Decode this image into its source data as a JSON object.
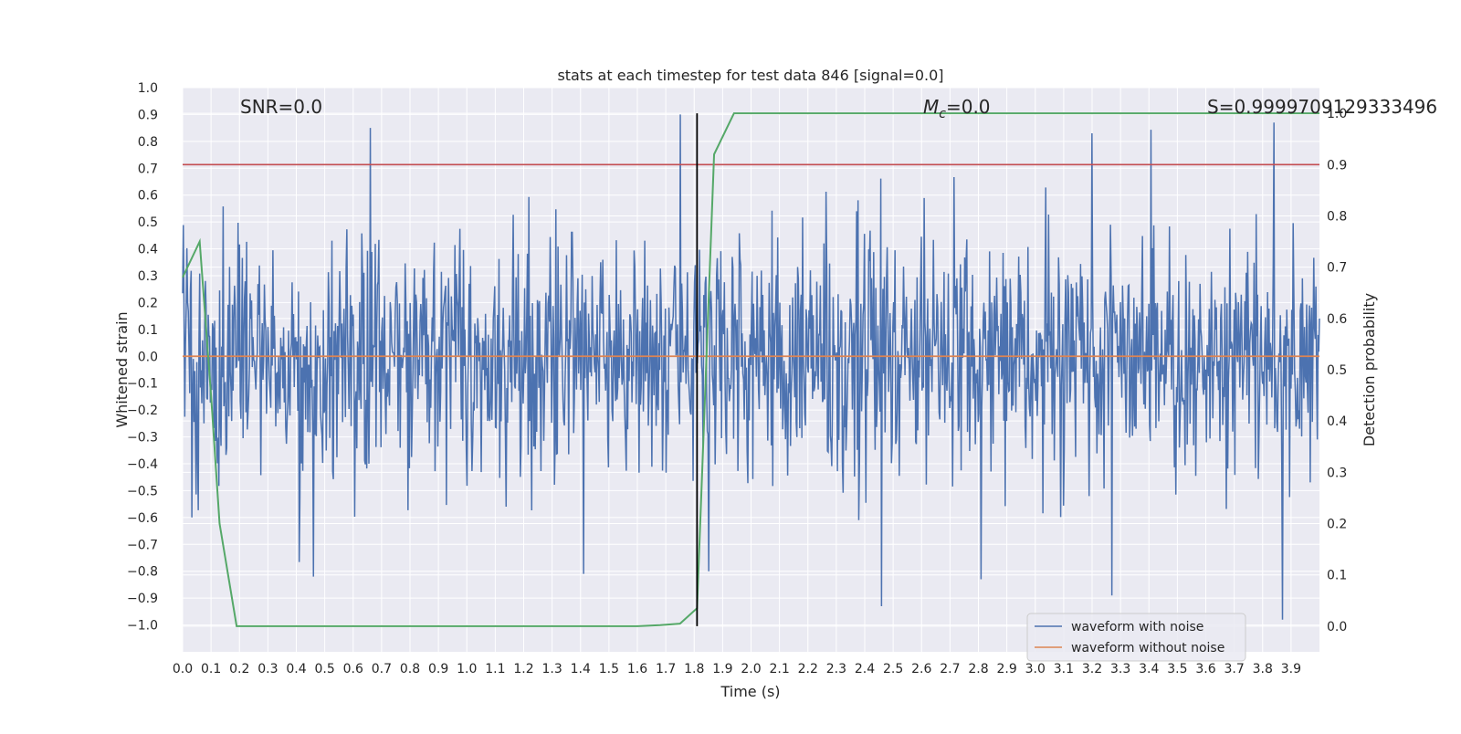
{
  "chart_data": {
    "type": "line",
    "title": "stats at each timestep for test data 846 [signal=0.0]",
    "xlabel": "Time (s)",
    "ylabel": "Whitened strain",
    "ylabel_right": "Detection probability",
    "xlim": [
      0.0,
      4.0
    ],
    "ylim": [
      -1.1,
      1.0
    ],
    "ylim_right": [
      -0.05,
      1.05
    ],
    "x_ticks": [
      0.0,
      0.1,
      0.2,
      0.3,
      0.4,
      0.5,
      0.6,
      0.7,
      0.8,
      0.9,
      1.0,
      1.1,
      1.2,
      1.3,
      1.4,
      1.5,
      1.6,
      1.7,
      1.8,
      1.9,
      2.0,
      2.1,
      2.2,
      2.3,
      2.4,
      2.5,
      2.6,
      2.7,
      2.8,
      2.9,
      3.0,
      3.1,
      3.2,
      3.3,
      3.4,
      3.5,
      3.6,
      3.7,
      3.8,
      3.9
    ],
    "x_tick_labels": [
      "0.0",
      "0.1",
      "0.2",
      "0.3",
      "0.4",
      "0.5",
      "0.6",
      "0.7",
      "0.8",
      "0.9",
      "1.0",
      "1.1",
      "1.2",
      "1.3",
      "1.4",
      "1.5",
      "1.6",
      "1.7",
      "1.8",
      "1.9",
      "2.0",
      "2.1",
      "2.2",
      "2.3",
      "2.4",
      "2.5",
      "2.6",
      "2.7",
      "2.8",
      "2.9",
      "3.0",
      "3.1",
      "3.2",
      "3.3",
      "3.4",
      "3.5",
      "3.6",
      "3.7",
      "3.8",
      "3.9"
    ],
    "y_ticks": [
      1.0,
      0.9,
      0.8,
      0.7,
      0.6,
      0.5,
      0.4,
      0.3,
      0.2,
      0.1,
      0.0,
      -0.1,
      -0.2,
      -0.3,
      -0.4,
      -0.5,
      -0.6,
      -0.7,
      -0.8,
      -0.9,
      -1.0
    ],
    "y_tick_labels": [
      "1.0",
      "0.9",
      "0.8",
      "0.7",
      "0.6",
      "0.5",
      "0.4",
      "0.3",
      "0.2",
      "0.1",
      "0.0",
      "−0.1",
      "−0.2",
      "−0.3",
      "−0.4",
      "−0.5",
      "−0.6",
      "−0.7",
      "−0.8",
      "−0.9",
      "−1.0"
    ],
    "y_right_ticks": [
      1.0,
      0.9,
      0.8,
      0.7,
      0.6,
      0.5,
      0.4,
      0.3,
      0.2,
      0.1,
      0.0
    ],
    "y_right_tick_labels": [
      "1.0",
      "0.9",
      "0.8",
      "0.7",
      "0.6",
      "0.5",
      "0.4",
      "0.3",
      "0.2",
      "0.1",
      "0.0"
    ],
    "grid": true,
    "legend_position": "bottom-right",
    "annotations": {
      "snr": "SNR=0.0",
      "mc_symbol": "M",
      "mc_sub": "c",
      "mc_value": "=0.0",
      "s_value": "S=0.9999709129333496"
    },
    "threshold_right": 0.9,
    "vertical_marker_x": 1.81,
    "series": [
      {
        "name": "waveform with noise",
        "color": "#4c72b0",
        "axis": "left",
        "sampling": {
          "t_start": 0.0,
          "t_end": 4.0,
          "count": 1600,
          "seed": 846
        },
        "peaks": [
          {
            "x": 0.66,
            "y": 0.85
          },
          {
            "x": 1.75,
            "y": 0.91
          },
          {
            "x": 3.2,
            "y": 0.83
          },
          {
            "x": 3.84,
            "y": 0.87
          },
          {
            "x": 3.87,
            "y": -1.0
          },
          {
            "x": 2.46,
            "y": -0.93
          },
          {
            "x": 3.27,
            "y": -0.89
          },
          {
            "x": 1.41,
            "y": -0.81
          },
          {
            "x": 0.46,
            "y": -0.82
          },
          {
            "x": 2.81,
            "y": -0.83
          },
          {
            "x": 1.85,
            "y": -0.8
          }
        ]
      },
      {
        "name": "waveform without noise",
        "color": "#dd8452",
        "axis": "left",
        "x": [
          0.0,
          4.0
        ],
        "y": [
          0.0,
          0.0
        ]
      },
      {
        "name": "",
        "color": "#55a868",
        "axis": "right",
        "x": [
          0.0,
          0.06,
          0.1,
          0.13,
          0.19,
          0.22,
          1.0,
          1.6,
          1.68,
          1.75,
          1.81,
          1.87,
          1.94,
          4.0
        ],
        "y": [
          0.68,
          0.75,
          0.45,
          0.2,
          0.0,
          0.0,
          0.0,
          0.0,
          0.002,
          0.005,
          0.035,
          0.92,
          1.0,
          1.0
        ]
      }
    ]
  }
}
